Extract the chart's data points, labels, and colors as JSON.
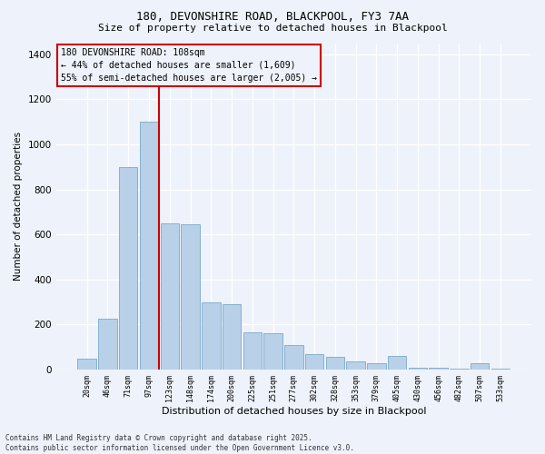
{
  "title_line1": "180, DEVONSHIRE ROAD, BLACKPOOL, FY3 7AA",
  "title_line2": "Size of property relative to detached houses in Blackpool",
  "xlabel": "Distribution of detached houses by size in Blackpool",
  "ylabel": "Number of detached properties",
  "footer_line1": "Contains HM Land Registry data © Crown copyright and database right 2025.",
  "footer_line2": "Contains public sector information licensed under the Open Government Licence v3.0.",
  "annotation_line1": "180 DEVONSHIRE ROAD: 108sqm",
  "annotation_line2": "← 44% of detached houses are smaller (1,609)",
  "annotation_line3": "55% of semi-detached houses are larger (2,005) →",
  "categories": [
    "20sqm",
    "46sqm",
    "71sqm",
    "97sqm",
    "123sqm",
    "148sqm",
    "174sqm",
    "200sqm",
    "225sqm",
    "251sqm",
    "277sqm",
    "302sqm",
    "328sqm",
    "353sqm",
    "379sqm",
    "405sqm",
    "430sqm",
    "456sqm",
    "482sqm",
    "507sqm",
    "533sqm"
  ],
  "values": [
    50,
    225,
    900,
    1100,
    650,
    645,
    300,
    290,
    165,
    160,
    110,
    70,
    55,
    35,
    30,
    60,
    10,
    10,
    5,
    30,
    5
  ],
  "bar_color": "#b8d0e8",
  "bar_edge_color": "#7aaac8",
  "vline_color": "#cc0000",
  "vline_x": 3.5,
  "annotation_box_color": "#cc0000",
  "background_color": "#eef2fa",
  "grid_color": "#ffffff",
  "ylim": [
    0,
    1450
  ],
  "yticks": [
    0,
    200,
    400,
    600,
    800,
    1000,
    1200,
    1400
  ]
}
